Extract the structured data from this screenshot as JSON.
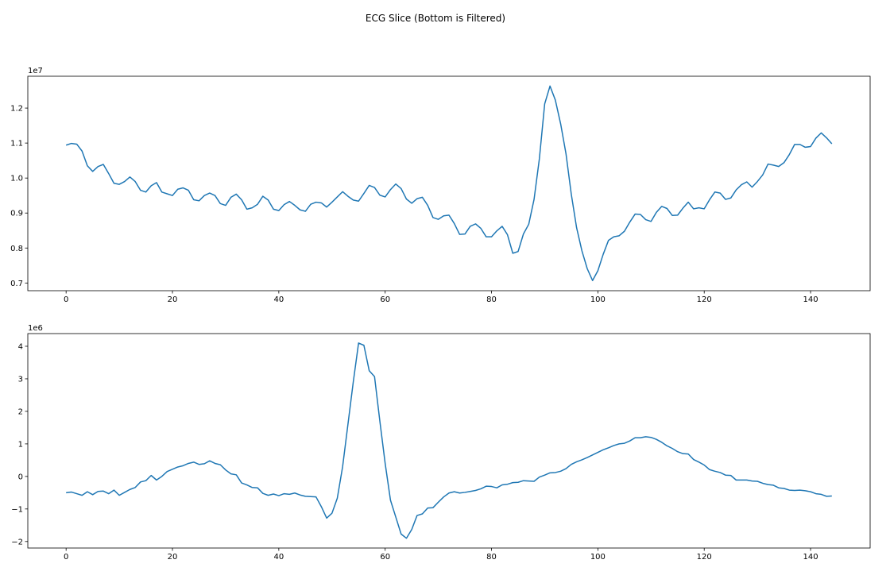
{
  "title": "ECG Slice (Bottom is Filtered)",
  "chart_data": [
    {
      "type": "line",
      "y_offset_label": "1e7",
      "xlim": [
        -7.2,
        151.2
      ],
      "ylim": [
        0.678,
        1.291
      ],
      "xticks": [
        0,
        20,
        40,
        60,
        80,
        100,
        120,
        140
      ],
      "yticks": [
        0.7,
        0.8,
        0.9,
        {
          "value": 1,
          "label": "1.0"
        },
        1.1,
        1.2
      ],
      "x": [
        0,
        1,
        2,
        3,
        4,
        5,
        6,
        7,
        8,
        9,
        10,
        11,
        12,
        13,
        14,
        15,
        16,
        17,
        18,
        19,
        20,
        21,
        22,
        23,
        24,
        25,
        26,
        27,
        28,
        29,
        30,
        31,
        32,
        33,
        34,
        35,
        36,
        37,
        38,
        39,
        40,
        41,
        42,
        43,
        44,
        45,
        46,
        47,
        48,
        49,
        50,
        51,
        52,
        53,
        54,
        55,
        56,
        57,
        58,
        59,
        60,
        61,
        62,
        63,
        64,
        65,
        66,
        67,
        68,
        69,
        70,
        71,
        72,
        73,
        74,
        75,
        76,
        77,
        78,
        79,
        80,
        81,
        82,
        83,
        84,
        85,
        86,
        87,
        88,
        89,
        90,
        91,
        92,
        93,
        94,
        95,
        96,
        97,
        98,
        99,
        100,
        101,
        102,
        103,
        104,
        105,
        106,
        107,
        108,
        109,
        110,
        111,
        112,
        113,
        114,
        115,
        116,
        117,
        118,
        119,
        120,
        121,
        122,
        123,
        124,
        125,
        126,
        127,
        128,
        129,
        130,
        131,
        132,
        133,
        134,
        135,
        136,
        137,
        138,
        139,
        140,
        141,
        142,
        143,
        144
      ],
      "series": [
        {
          "color": "#1f77b4",
          "values": [
            1.094,
            1.099,
            1.097,
            1.077,
            1.035,
            1.019,
            1.033,
            1.039,
            1.013,
            0.985,
            0.982,
            0.99,
            1.003,
            0.99,
            0.965,
            0.96,
            0.978,
            0.987,
            0.96,
            0.955,
            0.95,
            0.968,
            0.972,
            0.965,
            0.938,
            0.935,
            0.95,
            0.957,
            0.95,
            0.927,
            0.922,
            0.945,
            0.954,
            0.938,
            0.911,
            0.915,
            0.925,
            0.948,
            0.937,
            0.911,
            0.907,
            0.924,
            0.933,
            0.922,
            0.909,
            0.905,
            0.925,
            0.931,
            0.929,
            0.917,
            0.931,
            0.946,
            0.961,
            0.948,
            0.937,
            0.934,
            0.956,
            0.979,
            0.973,
            0.951,
            0.946,
            0.967,
            0.983,
            0.97,
            0.94,
            0.928,
            0.941,
            0.945,
            0.922,
            0.887,
            0.882,
            0.892,
            0.894,
            0.87,
            0.839,
            0.84,
            0.862,
            0.869,
            0.856,
            0.832,
            0.832,
            0.849,
            0.862,
            0.838,
            0.785,
            0.79,
            0.84,
            0.868,
            0.939,
            1.055,
            1.212,
            1.263,
            1.223,
            1.155,
            1.07,
            0.954,
            0.858,
            0.792,
            0.741,
            0.707,
            0.735,
            0.782,
            0.822,
            0.832,
            0.835,
            0.848,
            0.874,
            0.897,
            0.896,
            0.881,
            0.876,
            0.902,
            0.919,
            0.913,
            0.893,
            0.894,
            0.914,
            0.931,
            0.912,
            0.915,
            0.912,
            0.938,
            0.96,
            0.957,
            0.939,
            0.943,
            0.966,
            0.981,
            0.989,
            0.974,
            0.99,
            1.009,
            1.04,
            1.037,
            1.033,
            1.044,
            1.067,
            1.096,
            1.096,
            1.088,
            1.09,
            1.114,
            1.129,
            1.115,
            1.098
          ]
        }
      ]
    },
    {
      "type": "line",
      "y_offset_label": "1e6",
      "xlim": [
        -7.2,
        151.2
      ],
      "ylim": [
        -2.2,
        4.39
      ],
      "xticks": [
        0,
        20,
        40,
        60,
        80,
        100,
        120,
        140
      ],
      "yticks": [
        {
          "value": -2,
          "label": "−2"
        },
        {
          "value": -1,
          "label": "−1"
        },
        0,
        1,
        2,
        3,
        4
      ],
      "x": [
        0,
        1,
        2,
        3,
        4,
        5,
        6,
        7,
        8,
        9,
        10,
        11,
        12,
        13,
        14,
        15,
        16,
        17,
        18,
        19,
        20,
        21,
        22,
        23,
        24,
        25,
        26,
        27,
        28,
        29,
        30,
        31,
        32,
        33,
        34,
        35,
        36,
        37,
        38,
        39,
        40,
        41,
        42,
        43,
        44,
        45,
        46,
        47,
        48,
        49,
        50,
        51,
        52,
        53,
        54,
        55,
        56,
        57,
        58,
        59,
        60,
        61,
        62,
        63,
        64,
        65,
        66,
        67,
        68,
        69,
        70,
        71,
        72,
        73,
        74,
        75,
        76,
        77,
        78,
        79,
        80,
        81,
        82,
        83,
        84,
        85,
        86,
        87,
        88,
        89,
        90,
        91,
        92,
        93,
        94,
        95,
        96,
        97,
        98,
        99,
        100,
        101,
        102,
        103,
        104,
        105,
        106,
        107,
        108,
        109,
        110,
        111,
        112,
        113,
        114,
        115,
        116,
        117,
        118,
        119,
        120,
        121,
        122,
        123,
        124,
        125,
        126,
        127,
        128,
        129,
        130,
        131,
        132,
        133,
        134,
        135,
        136,
        137,
        138,
        139,
        140,
        141,
        142,
        143,
        144
      ],
      "series": [
        {
          "color": "#1f77b4",
          "values": [
            -0.5,
            -0.48,
            -0.53,
            -0.58,
            -0.47,
            -0.56,
            -0.46,
            -0.45,
            -0.53,
            -0.42,
            -0.58,
            -0.49,
            -0.4,
            -0.34,
            -0.17,
            -0.13,
            0.03,
            -0.11,
            0.0,
            0.15,
            0.22,
            0.29,
            0.33,
            0.4,
            0.44,
            0.37,
            0.39,
            0.48,
            0.4,
            0.36,
            0.2,
            0.08,
            0.05,
            -0.2,
            -0.26,
            -0.34,
            -0.35,
            -0.52,
            -0.58,
            -0.54,
            -0.59,
            -0.53,
            -0.55,
            -0.51,
            -0.57,
            -0.61,
            -0.62,
            -0.63,
            -0.93,
            -1.28,
            -1.13,
            -0.67,
            0.3,
            1.6,
            2.9,
            4.1,
            4.03,
            3.25,
            3.07,
            1.7,
            0.4,
            -0.73,
            -1.25,
            -1.77,
            -1.9,
            -1.63,
            -1.2,
            -1.15,
            -0.97,
            -0.96,
            -0.79,
            -0.63,
            -0.51,
            -0.47,
            -0.51,
            -0.49,
            -0.46,
            -0.43,
            -0.38,
            -0.3,
            -0.31,
            -0.35,
            -0.26,
            -0.24,
            -0.19,
            -0.18,
            -0.13,
            -0.14,
            -0.15,
            -0.02,
            0.04,
            0.11,
            0.12,
            0.16,
            0.24,
            0.37,
            0.45,
            0.51,
            0.58,
            0.66,
            0.74,
            0.82,
            0.88,
            0.95,
            1.0,
            1.02,
            1.09,
            1.19,
            1.19,
            1.22,
            1.2,
            1.14,
            1.05,
            0.94,
            0.86,
            0.76,
            0.7,
            0.69,
            0.52,
            0.44,
            0.35,
            0.21,
            0.16,
            0.12,
            0.04,
            0.03,
            -0.11,
            -0.11,
            -0.11,
            -0.14,
            -0.15,
            -0.21,
            -0.25,
            -0.27,
            -0.35,
            -0.37,
            -0.42,
            -0.43,
            -0.42,
            -0.44,
            -0.47,
            -0.53,
            -0.55,
            -0.61,
            -0.6
          ]
        }
      ]
    }
  ]
}
